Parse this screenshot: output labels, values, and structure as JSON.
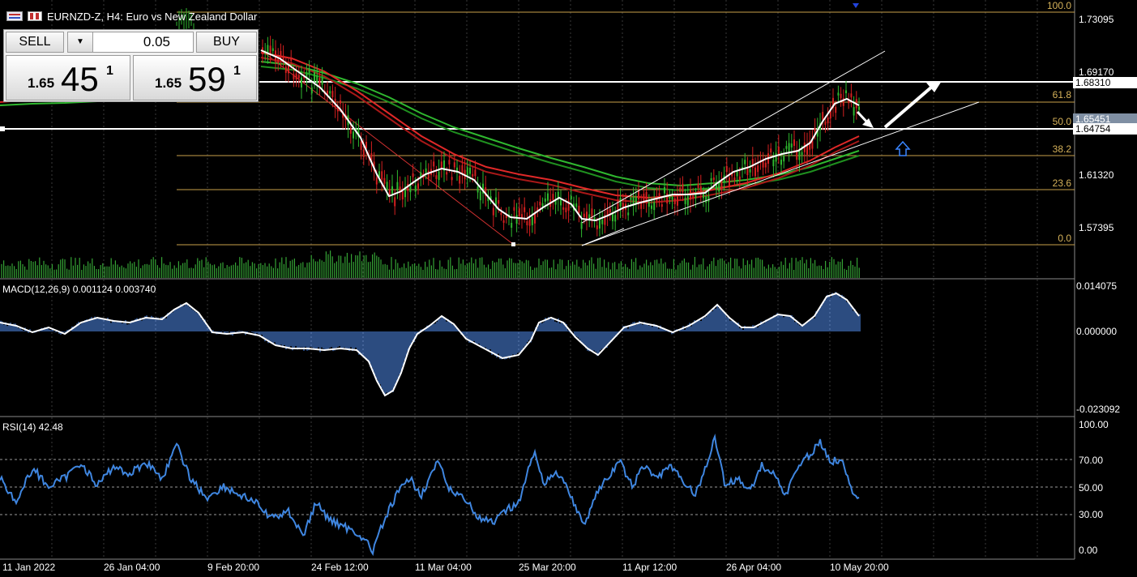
{
  "title": "EURNZD-Z, H4:  Euro vs New Zealand Dollar",
  "trade_panel": {
    "sell_label": "SELL",
    "buy_label": "BUY",
    "lot": "0.05",
    "sell_prefix": "1.65",
    "sell_big": "45",
    "sell_sup": "1",
    "buy_prefix": "1.65",
    "buy_big": "59",
    "buy_sup": "1"
  },
  "price_axis": {
    "labels": [
      "1.73095",
      "1.69170",
      "1.65451",
      "1.61320",
      "1.57395"
    ],
    "boxes": [
      "1.68310",
      "1.64754"
    ]
  },
  "fibonacci": {
    "levels": [
      "100.0",
      "61.8",
      "50.0",
      "38.2",
      "23.6",
      "0.0"
    ]
  },
  "macd": {
    "label": "MACD(12,26,9) 0.001124 0.003740",
    "axis": [
      "0.014075",
      "0.000000",
      "-0.023092"
    ]
  },
  "rsi": {
    "label": "RSI(14) 42.48",
    "axis": [
      "100.00",
      "70.00",
      "50.00",
      "30.00",
      "0.00"
    ]
  },
  "time_axis": [
    "11 Jan 2022",
    "26 Jan 04:00",
    "9 Feb 20:00",
    "24 Feb 12:00",
    "11 Mar 04:00",
    "25 Mar 20:00",
    "11 Apr 12:00",
    "26 Apr 04:00",
    "10 May 20:00"
  ],
  "colors": {
    "background": "#000000",
    "fib": "#d6b25a",
    "ma_red": "#d42020",
    "ma_green": "#2fb82f",
    "volume": "#35a335",
    "macd_hist": "#4a7fd6",
    "rsi_line": "#3f86e0",
    "arrow_blue": "#3a86ff"
  }
}
